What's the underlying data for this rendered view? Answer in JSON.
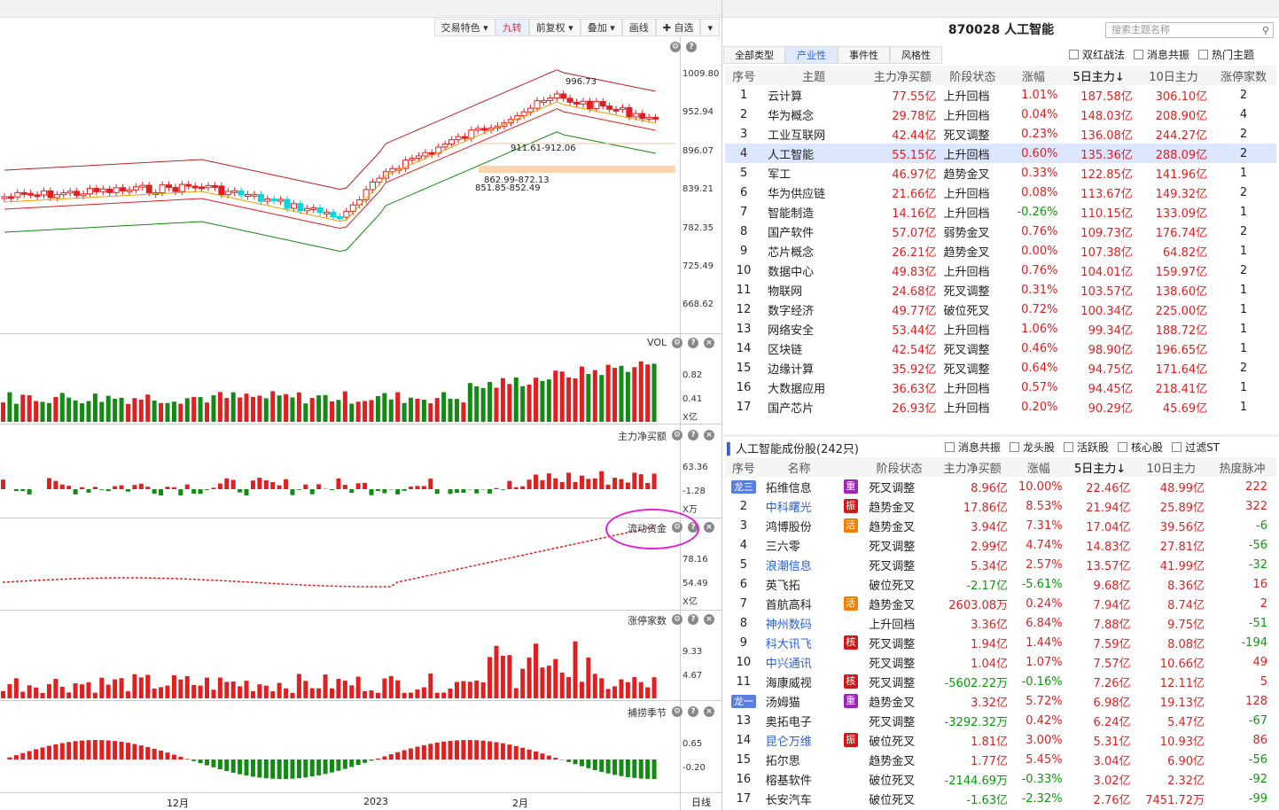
{
  "toolbar": {
    "items": [
      "交易特色 ▾",
      "九转",
      "前复权 ▾",
      "叠加 ▾",
      "画线",
      "✚ 自选",
      "▾"
    ],
    "active": 1
  },
  "chart": {
    "price_axis": [
      "1009.80",
      "952.94",
      "896.07",
      "839.21",
      "782.35",
      "725.49",
      "668.62"
    ],
    "annotations": {
      "high": "996.73",
      "ann1": "911.61-912.06",
      "ann2": "862.99-872.13",
      "ann3": "851.85-852.49"
    },
    "vol_label": "VOL",
    "vol_axis": [
      "0.82",
      "0.41",
      "X亿"
    ],
    "net_label": "主力净买额",
    "net_axis": [
      "63.36",
      "-1.28",
      "X万"
    ],
    "flow_label": "流动资金",
    "flow_axis": [
      "78.16",
      "54.49",
      "X亿"
    ],
    "limit_label": "涨停家数",
    "limit_axis": [
      "9.33",
      "4.67"
    ],
    "season_label": "捕捞季节",
    "season_axis": [
      "0.65",
      "-0.20"
    ],
    "x_labels": [
      "12月",
      "2023",
      "2月"
    ],
    "period": "日线"
  },
  "header": {
    "title": "870028 人工智能",
    "search_placeholder": "搜索主题名称"
  },
  "theme_tabs": [
    "全部类型",
    "产业性",
    "事件性",
    "风格性"
  ],
  "theme_checks": [
    "双红战法",
    "消息共振",
    "热门主题"
  ],
  "theme_cols": [
    "序号",
    "主题",
    "主力净买额",
    "阶段状态",
    "涨幅",
    "5日主力↓",
    "10日主力",
    "涨停家数"
  ],
  "themes": [
    [
      "1",
      "云计算",
      "77.55亿",
      "上升回档",
      "1.01%",
      "187.58亿",
      "306.10亿",
      "2"
    ],
    [
      "2",
      "华为概念",
      "29.78亿",
      "上升回档",
      "0.04%",
      "148.03亿",
      "208.90亿",
      "4"
    ],
    [
      "3",
      "工业互联网",
      "42.44亿",
      "死叉调整",
      "0.23%",
      "136.08亿",
      "244.27亿",
      "2"
    ],
    [
      "4",
      "人工智能",
      "55.15亿",
      "上升回档",
      "0.60%",
      "135.36亿",
      "288.09亿",
      "2"
    ],
    [
      "5",
      "军工",
      "46.97亿",
      "趋势金叉",
      "0.33%",
      "122.85亿",
      "141.96亿",
      "1"
    ],
    [
      "6",
      "华为供应链",
      "21.66亿",
      "上升回档",
      "0.08%",
      "113.67亿",
      "149.32亿",
      "2"
    ],
    [
      "7",
      "智能制造",
      "14.16亿",
      "上升回档",
      "-0.26%",
      "110.15亿",
      "133.09亿",
      "1"
    ],
    [
      "8",
      "国产软件",
      "57.07亿",
      "弱势金叉",
      "0.76%",
      "109.73亿",
      "176.74亿",
      "2"
    ],
    [
      "9",
      "芯片概念",
      "26.21亿",
      "趋势金叉",
      "0.00%",
      "107.38亿",
      "64.82亿",
      "1"
    ],
    [
      "10",
      "数据中心",
      "49.83亿",
      "上升回档",
      "0.76%",
      "104.01亿",
      "159.97亿",
      "2"
    ],
    [
      "11",
      "物联网",
      "24.68亿",
      "死叉调整",
      "0.31%",
      "103.57亿",
      "138.60亿",
      "1"
    ],
    [
      "12",
      "数字经济",
      "49.77亿",
      "破位死叉",
      "0.72%",
      "100.34亿",
      "225.00亿",
      "1"
    ],
    [
      "13",
      "网络安全",
      "53.44亿",
      "上升回档",
      "1.06%",
      "99.34亿",
      "188.72亿",
      "1"
    ],
    [
      "14",
      "区块链",
      "42.54亿",
      "死叉调整",
      "0.46%",
      "98.90亿",
      "196.65亿",
      "1"
    ],
    [
      "15",
      "边缘计算",
      "35.92亿",
      "死叉调整",
      "0.64%",
      "94.75亿",
      "171.64亿",
      "2"
    ],
    [
      "16",
      "大数据应用",
      "36.63亿",
      "上升回档",
      "0.57%",
      "94.45亿",
      "218.41亿",
      "1"
    ],
    [
      "17",
      "国产芯片",
      "26.93亿",
      "上升回档",
      "0.20%",
      "90.29亿",
      "45.69亿",
      "1"
    ]
  ],
  "stocks_title": "人工智能成份股(242只)",
  "stock_checks": [
    "消息共振",
    "龙头股",
    "活跃股",
    "核心股",
    "过滤ST"
  ],
  "stock_cols": [
    "序号",
    "名称",
    "",
    "阶段状态",
    "主力净买额",
    "涨幅",
    "5日主力↓",
    "10日主力",
    "热度脉冲"
  ],
  "stocks": [
    [
      "龙三",
      "拓维信息",
      "重",
      "死叉调整",
      "8.96亿",
      "10.00%",
      "22.46亿",
      "48.99亿",
      "222"
    ],
    [
      "2",
      "中科曙光",
      "振",
      "趋势金叉",
      "17.86亿",
      "8.53%",
      "21.94亿",
      "25.89亿",
      "322"
    ],
    [
      "3",
      "鸿博股份",
      "活",
      "趋势金叉",
      "3.94亿",
      "7.31%",
      "17.04亿",
      "39.56亿",
      "-6"
    ],
    [
      "4",
      "三六零",
      "",
      "死叉调整",
      "2.99亿",
      "4.74%",
      "14.83亿",
      "27.81亿",
      "-56"
    ],
    [
      "5",
      "浪潮信息",
      "",
      "死叉调整",
      "5.34亿",
      "2.57%",
      "13.57亿",
      "41.99亿",
      "-32"
    ],
    [
      "6",
      "英飞拓",
      "",
      "破位死叉",
      "-2.17亿",
      "-5.61%",
      "9.68亿",
      "8.36亿",
      "16"
    ],
    [
      "7",
      "首航高科",
      "活",
      "趋势金叉",
      "2603.08万",
      "0.24%",
      "7.94亿",
      "8.74亿",
      "2"
    ],
    [
      "8",
      "神州数码",
      "",
      "上升回档",
      "3.36亿",
      "6.84%",
      "7.88亿",
      "9.75亿",
      "-51"
    ],
    [
      "9",
      "科大讯飞",
      "核",
      "死叉调整",
      "1.94亿",
      "1.44%",
      "7.59亿",
      "8.08亿",
      "-194"
    ],
    [
      "10",
      "中兴通讯",
      "",
      "死叉调整",
      "1.04亿",
      "1.07%",
      "7.57亿",
      "10.66亿",
      "49"
    ],
    [
      "11",
      "海康威视",
      "核",
      "死叉调整",
      "-5602.22万",
      "-0.16%",
      "7.26亿",
      "12.11亿",
      "5"
    ],
    [
      "龙一",
      "汤姆猫",
      "重",
      "趋势金叉",
      "3.32亿",
      "5.72%",
      "6.98亿",
      "19.13亿",
      "128"
    ],
    [
      "13",
      "奥拓电子",
      "",
      "死叉调整",
      "-3292.32万",
      "0.42%",
      "6.24亿",
      "5.47亿",
      "-67"
    ],
    [
      "14",
      "昆仑万维",
      "振",
      "破位死叉",
      "1.81亿",
      "3.00%",
      "5.31亿",
      "10.93亿",
      "86"
    ],
    [
      "15",
      "拓尔思",
      "",
      "趋势金叉",
      "1.77亿",
      "5.45%",
      "3.04亿",
      "6.90亿",
      "-56"
    ],
    [
      "16",
      "榕基软件",
      "",
      "破位死叉",
      "-2144.69万",
      "-0.33%",
      "3.02亿",
      "2.32亿",
      "-92"
    ],
    [
      "17",
      "长安汽车",
      "",
      "破位死叉",
      "-1.63亿",
      "-2.32%",
      "2.76亿",
      "7451.72万",
      "-99"
    ]
  ],
  "blue_names": [
    "中科曙光",
    "浪潮信息",
    "神州数码",
    "科大讯飞",
    "中兴通讯",
    "昆仑万维"
  ]
}
